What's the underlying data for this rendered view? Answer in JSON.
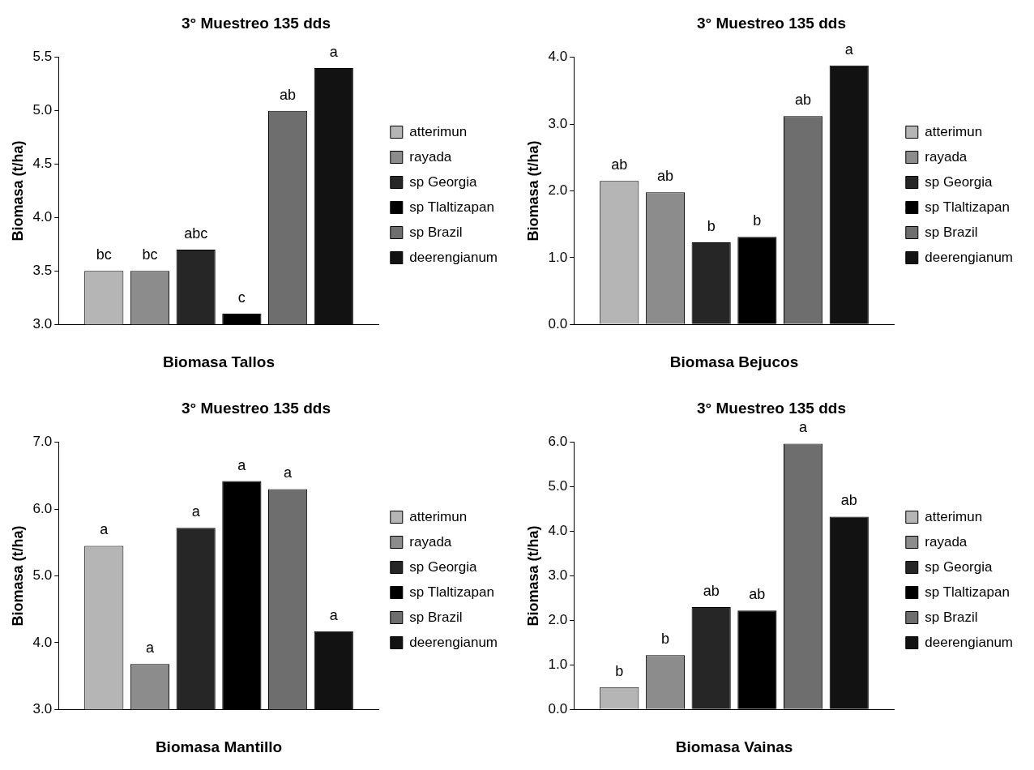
{
  "chart_data": [
    {
      "type": "bar",
      "title": "3° Muestreo 135 dds",
      "xlabel": "Biomasa Tallos",
      "ylabel": "Biomasa (t/ha)",
      "categories": [
        null
      ],
      "ylim": [
        3.0,
        5.5
      ],
      "yticks": [
        {
          "value": 3,
          "label": "3.0"
        },
        {
          "value": 3.5,
          "label": "3.5"
        },
        {
          "value": 4,
          "label": "4.0"
        },
        {
          "value": 4.5,
          "label": "4.5"
        },
        {
          "value": 5,
          "label": "5.0"
        },
        {
          "value": 5.5,
          "label": "5.5"
        }
      ],
      "grid": false,
      "legend": "right",
      "series": [
        {
          "name": "atterimun",
          "color": "#b5b5b5",
          "values": [
            3.5
          ],
          "value_labels": [
            "bc"
          ]
        },
        {
          "name": "rayada",
          "color": "#8c8c8c",
          "values": [
            3.5
          ],
          "value_labels": [
            "bc"
          ]
        },
        {
          "name": "sp Georgia",
          "color": "#262626",
          "values": [
            3.7
          ],
          "value_labels": [
            "abc"
          ]
        },
        {
          "name": "sp Tlaltizapan",
          "color": "#000000",
          "values": [
            3.1
          ],
          "value_labels": [
            "c"
          ]
        },
        {
          "name": "sp Brazil",
          "color": "#6e6e6e",
          "values": [
            5.0
          ],
          "value_labels": [
            "ab"
          ]
        },
        {
          "name": "deerengianum",
          "color": "#121212",
          "values": [
            5.4
          ],
          "value_labels": [
            "a"
          ]
        }
      ]
    },
    {
      "type": "bar",
      "title": "3° Muestreo 135 dds",
      "xlabel": "Biomasa Bejucos",
      "ylabel": "Biomasa (t/ha)",
      "categories": [
        null
      ],
      "ylim": [
        0.0,
        4.0
      ],
      "yticks": [
        {
          "value": 0,
          "label": "0.0"
        },
        {
          "value": 1,
          "label": "1.0"
        },
        {
          "value": 2,
          "label": "2.0"
        },
        {
          "value": 3,
          "label": "3.0"
        },
        {
          "value": 4,
          "label": "4.0"
        }
      ],
      "grid": false,
      "legend": "right",
      "series": [
        {
          "name": "atterimun",
          "color": "#b5b5b5",
          "values": [
            2.15
          ],
          "value_labels": [
            "ab"
          ]
        },
        {
          "name": "rayada",
          "color": "#8c8c8c",
          "values": [
            1.98
          ],
          "value_labels": [
            "ab"
          ]
        },
        {
          "name": "sp Georgia",
          "color": "#262626",
          "values": [
            1.23
          ],
          "value_labels": [
            "b"
          ]
        },
        {
          "name": "sp Tlaltizapan",
          "color": "#000000",
          "values": [
            1.31
          ],
          "value_labels": [
            "b"
          ]
        },
        {
          "name": "sp Brazil",
          "color": "#6e6e6e",
          "values": [
            3.12
          ],
          "value_labels": [
            "ab"
          ]
        },
        {
          "name": "deerengianum",
          "color": "#121212",
          "values": [
            3.88
          ],
          "value_labels": [
            "a"
          ]
        }
      ]
    },
    {
      "type": "bar",
      "title": "3° Muestreo 135 dds",
      "xlabel": "Biomasa Mantillo",
      "ylabel": "Biomasa (t/ha)",
      "categories": [
        null
      ],
      "ylim": [
        3.0,
        7.0
      ],
      "yticks": [
        {
          "value": 3,
          "label": "3.0"
        },
        {
          "value": 4,
          "label": "4.0"
        },
        {
          "value": 5,
          "label": "5.0"
        },
        {
          "value": 6,
          "label": "6.0"
        },
        {
          "value": 7,
          "label": "7.0"
        }
      ],
      "grid": false,
      "legend": "right",
      "series": [
        {
          "name": "atterimun",
          "color": "#b5b5b5",
          "values": [
            5.45
          ],
          "value_labels": [
            "a"
          ]
        },
        {
          "name": "rayada",
          "color": "#8c8c8c",
          "values": [
            3.68
          ],
          "value_labels": [
            "a"
          ]
        },
        {
          "name": "sp Georgia",
          "color": "#262626",
          "values": [
            5.72
          ],
          "value_labels": [
            "a"
          ]
        },
        {
          "name": "sp Tlaltizapan",
          "color": "#000000",
          "values": [
            6.42
          ],
          "value_labels": [
            "a"
          ]
        },
        {
          "name": "sp Brazil",
          "color": "#6e6e6e",
          "values": [
            6.3
          ],
          "value_labels": [
            "a"
          ]
        },
        {
          "name": "deerengianum",
          "color": "#121212",
          "values": [
            4.17
          ],
          "value_labels": [
            "a"
          ]
        }
      ]
    },
    {
      "type": "bar",
      "title": "3° Muestreo 135 dds",
      "xlabel": "Biomasa Vainas",
      "ylabel": "Biomasa (t/ha)",
      "categories": [
        null
      ],
      "ylim": [
        0.0,
        6.0
      ],
      "yticks": [
        {
          "value": 0,
          "label": "0.0"
        },
        {
          "value": 1,
          "label": "1.0"
        },
        {
          "value": 2,
          "label": "2.0"
        },
        {
          "value": 3,
          "label": "3.0"
        },
        {
          "value": 4,
          "label": "4.0"
        },
        {
          "value": 5,
          "label": "5.0"
        },
        {
          "value": 6,
          "label": "6.0"
        }
      ],
      "grid": false,
      "legend": "right",
      "series": [
        {
          "name": "atterimun",
          "color": "#b5b5b5",
          "values": [
            0.5
          ],
          "value_labels": [
            "b"
          ]
        },
        {
          "name": "rayada",
          "color": "#8c8c8c",
          "values": [
            1.22
          ],
          "value_labels": [
            "b"
          ]
        },
        {
          "name": "sp Georgia",
          "color": "#262626",
          "values": [
            2.3
          ],
          "value_labels": [
            "ab"
          ]
        },
        {
          "name": "sp Tlaltizapan",
          "color": "#000000",
          "values": [
            2.22
          ],
          "value_labels": [
            "ab"
          ]
        },
        {
          "name": "sp Brazil",
          "color": "#6e6e6e",
          "values": [
            5.97
          ],
          "value_labels": [
            "a"
          ]
        },
        {
          "name": "deerengianum",
          "color": "#121212",
          "values": [
            4.33
          ],
          "value_labels": [
            "ab"
          ]
        }
      ]
    }
  ]
}
